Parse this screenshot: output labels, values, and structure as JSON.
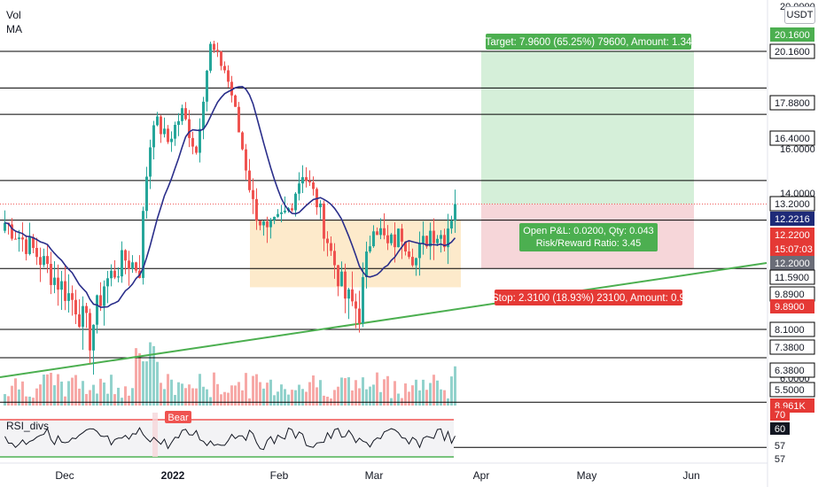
{
  "symbol": {
    "quote_currency": "USDT"
  },
  "indicators": {
    "volume_label": "Vol",
    "ma_label": "MA",
    "rsi_label": "RSI_divs",
    "rsi_bear_tag": "Bear"
  },
  "price_axis": {
    "ticks": [
      "20.0000",
      "16.0000",
      "14.0000",
      "6.0000"
    ],
    "labels": [
      {
        "text": "20.1600",
        "kind": "green"
      },
      {
        "text": "20.1600",
        "kind": "line"
      },
      {
        "text": "17.8800",
        "kind": "line"
      },
      {
        "text": "16.4000",
        "kind": "line"
      },
      {
        "text": "13.2000",
        "kind": "line"
      },
      {
        "text": "12.2216",
        "kind": "ma"
      },
      {
        "text": "12.2200",
        "kind": "red"
      },
      {
        "text": "15:07:03",
        "kind": "red"
      },
      {
        "text": "12.2000",
        "kind": "gray"
      },
      {
        "text": "11.5900",
        "kind": "line"
      },
      {
        "text": "9.8900",
        "kind": "line"
      },
      {
        "text": "9.8900",
        "kind": "red"
      },
      {
        "text": "8.1000",
        "kind": "line"
      },
      {
        "text": "7.3800",
        "kind": "line"
      },
      {
        "text": "6.3800",
        "kind": "line"
      },
      {
        "text": "5.5000",
        "kind": "line"
      },
      {
        "text": "8.961K",
        "kind": "red"
      }
    ],
    "rsi_labels": [
      {
        "text": "70",
        "kind": "red"
      },
      {
        "text": "60",
        "kind": "dark"
      },
      {
        "text": "57",
        "kind": "plain"
      },
      {
        "text": "57",
        "kind": "plain"
      }
    ]
  },
  "time_axis": {
    "labels": [
      "Dec",
      "2022",
      "Feb",
      "Mar",
      "Apr",
      "May",
      "Jun"
    ]
  },
  "position": {
    "target_label": "Target: 7.9600 (65.25%) 79600, Amount: 1.34",
    "stop_label": "Stop: 2.3100 (18.93%) 23100, Amount: 0.9",
    "pnl_line1": "Open P&L: 0.0200, Qty: 0.043",
    "pnl_line2": "Risk/Reward Ratio: 3.45"
  },
  "horizontal_levels": [
    20.16,
    17.88,
    16.4,
    13.2,
    11.59,
    9.89,
    8.1,
    7.38,
    6.38,
    5.5
  ],
  "last_price": 12.22,
  "colors": {
    "up": "#26a69a",
    "down": "#ef5350",
    "ma": "#2a2e8a",
    "trendline": "#4caf50",
    "target_zone": "#d5efd9",
    "stop_zone": "#f6d6d9",
    "range_box": "#fde6c2",
    "label_green": "#4caf50",
    "label_red": "#e53935",
    "label_ma": "#1e2a78"
  }
}
